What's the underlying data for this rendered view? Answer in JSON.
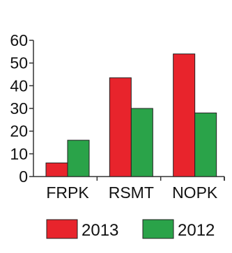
{
  "chart_data": {
    "type": "bar",
    "title": "",
    "xlabel": "",
    "ylabel": "",
    "ylim": [
      0,
      60
    ],
    "yticks": [
      0,
      10,
      20,
      30,
      40,
      50,
      60
    ],
    "categories": [
      "FRPK",
      "RSMT",
      "NOPK"
    ],
    "series": [
      {
        "name": "2013",
        "color": "#e8242c",
        "values": [
          6,
          43.5,
          54
        ]
      },
      {
        "name": "2012",
        "color": "#2aa349",
        "values": [
          16,
          30,
          28
        ]
      }
    ],
    "grid": false,
    "legend_position": "bottom"
  }
}
